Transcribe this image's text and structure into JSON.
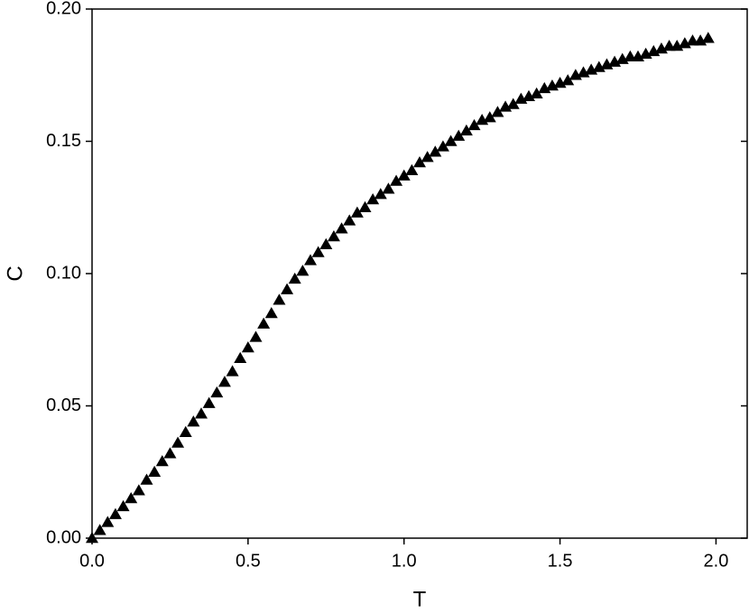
{
  "chart_data": {
    "type": "scatter",
    "x_label": "T",
    "y_label": "C",
    "marker": "triangle",
    "color": "#000000",
    "xlim": [
      0,
      2.1
    ],
    "ylim": [
      0,
      0.2
    ],
    "xticks": [
      {
        "value": 0,
        "label": "0.0"
      },
      0.5,
      {
        "value": 1,
        "label": "1.0"
      },
      1.5,
      {
        "value": 2,
        "label": "2.0"
      }
    ],
    "yticks": [
      {
        "value": 0,
        "label": "0.00"
      },
      0.05,
      {
        "value": 0.1,
        "label": "0.10"
      },
      0.15,
      {
        "value": 0.2,
        "label": "0.20"
      }
    ],
    "x": [
      0,
      0.025,
      0.05,
      0.075,
      0.1,
      0.125,
      0.15,
      0.175,
      0.2,
      0.225,
      0.25,
      0.275,
      0.3,
      0.325,
      0.35,
      0.375,
      0.4,
      0.425,
      0.45,
      0.475,
      0.5,
      0.525,
      0.55,
      0.575,
      0.6,
      0.625,
      0.65,
      0.675,
      0.7,
      0.725,
      0.75,
      0.775,
      0.8,
      0.825,
      0.85,
      0.875,
      0.9,
      0.925,
      0.95,
      0.975,
      1.0,
      1.025,
      1.05,
      1.075,
      1.1,
      1.125,
      1.15,
      1.175,
      1.2,
      1.225,
      1.25,
      1.275,
      1.3,
      1.325,
      1.35,
      1.375,
      1.4,
      1.425,
      1.45,
      1.475,
      1.5,
      1.525,
      1.55,
      1.575,
      1.6,
      1.625,
      1.65,
      1.675,
      1.7,
      1.725,
      1.75,
      1.775,
      1.8,
      1.825,
      1.85,
      1.875,
      1.9,
      1.925,
      1.95,
      1.975
    ],
    "values": [
      0,
      0.003,
      0.006,
      0.009,
      0.012,
      0.015,
      0.018,
      0.022,
      0.025,
      0.029,
      0.032,
      0.036,
      0.04,
      0.044,
      0.047,
      0.051,
      0.055,
      0.059,
      0.063,
      0.068,
      0.072,
      0.076,
      0.081,
      0.085,
      0.09,
      0.094,
      0.098,
      0.101,
      0.105,
      0.108,
      0.111,
      0.114,
      0.117,
      0.12,
      0.123,
      0.125,
      0.128,
      0.13,
      0.132,
      0.135,
      0.137,
      0.139,
      0.142,
      0.144,
      0.146,
      0.148,
      0.15,
      0.152,
      0.154,
      0.156,
      0.158,
      0.159,
      0.161,
      0.163,
      0.164,
      0.166,
      0.167,
      0.168,
      0.17,
      0.171,
      0.172,
      0.173,
      0.175,
      0.176,
      0.177,
      0.178,
      0.179,
      0.18,
      0.181,
      0.182,
      0.182,
      0.183,
      0.184,
      0.185,
      0.186,
      0.186,
      0.187,
      0.188,
      0.188,
      0.189
    ]
  }
}
